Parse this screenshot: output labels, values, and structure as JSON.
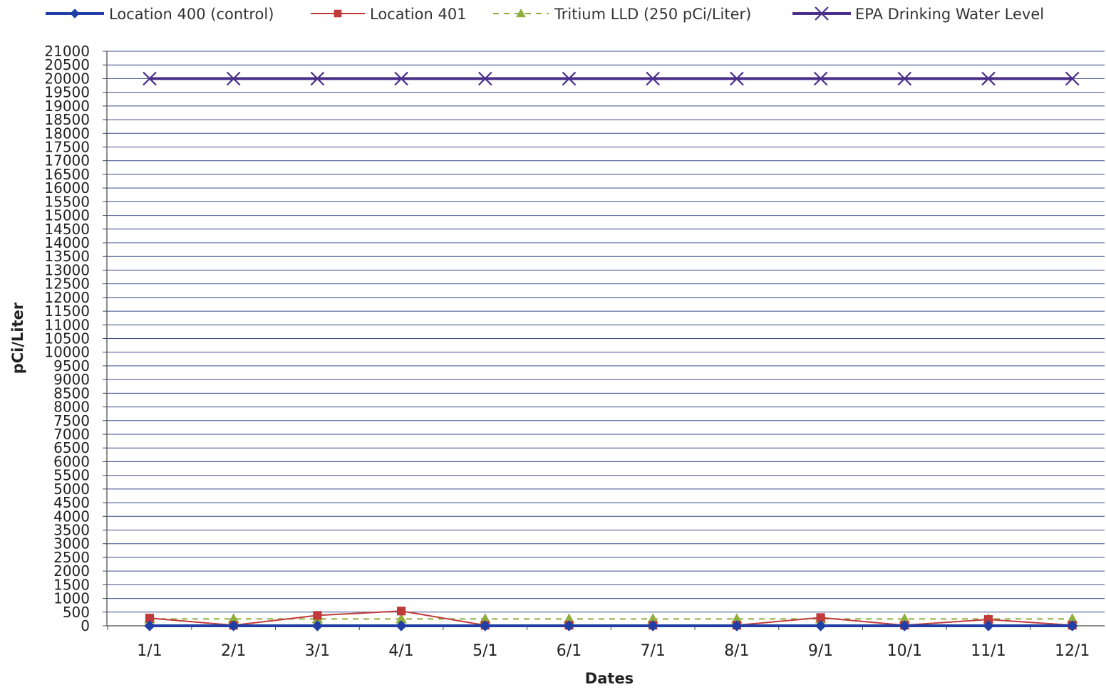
{
  "chart_data": {
    "type": "line",
    "xlabel": "Dates",
    "ylabel": "pCi/Liter",
    "categories": [
      "1/1",
      "2/1",
      "3/1",
      "4/1",
      "5/1",
      "6/1",
      "7/1",
      "8/1",
      "9/1",
      "10/1",
      "11/1",
      "12/1"
    ],
    "ylim": [
      0,
      21000
    ],
    "ytick_step": 500,
    "grid": true,
    "legend_position": "top",
    "series": [
      {
        "name": "Location 400 (control)",
        "color": "#1f3fa6",
        "marker": "diamond",
        "dash": "solid",
        "values": [
          0,
          0,
          0,
          0,
          0,
          0,
          0,
          0,
          0,
          0,
          0,
          0
        ]
      },
      {
        "name": "Location 401",
        "color": "#c0393b",
        "marker": "square",
        "dash": "solid",
        "values": [
          280,
          20,
          380,
          540,
          20,
          20,
          20,
          20,
          300,
          20,
          230,
          20
        ]
      },
      {
        "name": "Tritium LLD (250 pCi/Liter)",
        "color": "#8fae3a",
        "marker": "triangle",
        "dash": "dashed",
        "values": [
          250,
          250,
          250,
          250,
          250,
          250,
          250,
          250,
          250,
          250,
          250,
          250
        ]
      },
      {
        "name": "EPA Drinking Water Level",
        "color": "#4b2f8a",
        "marker": "x",
        "dash": "solid",
        "values": [
          20000,
          20000,
          20000,
          20000,
          20000,
          20000,
          20000,
          20000,
          20000,
          20000,
          20000,
          20000
        ]
      }
    ]
  }
}
